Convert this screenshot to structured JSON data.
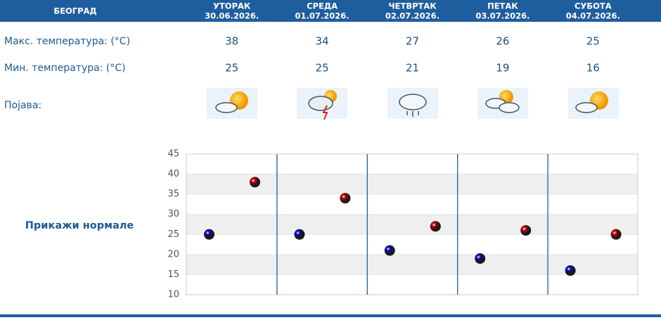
{
  "header": {
    "city": "БЕОГРАД",
    "days": [
      {
        "name": "УТОРАК",
        "date": "30.06.2026."
      },
      {
        "name": "СРЕДА",
        "date": "01.07.2026."
      },
      {
        "name": "ЧЕТВРТАК",
        "date": "02.07.2026."
      },
      {
        "name": "ПЕТАК",
        "date": "03.07.2026."
      },
      {
        "name": "СУБОТА",
        "date": "04.07.2026."
      }
    ]
  },
  "table": {
    "row_labels": [
      "Макс. температура: (°C)",
      "Мин. температура: (°C)",
      "Појава:"
    ]
  },
  "link": "Прикажи нормале",
  "chart_data": {
    "type": "scatter",
    "ylim": [
      10,
      45
    ],
    "yticks": [
      10,
      15,
      20,
      25,
      30,
      35,
      40,
      45
    ],
    "series": [
      {
        "color": "#c00000",
        "values": [
          38,
          34,
          27,
          26,
          25
        ]
      },
      {
        "color": "#0a0ab4",
        "values": [
          25,
          25,
          21,
          19,
          16
        ]
      }
    ]
  }
}
